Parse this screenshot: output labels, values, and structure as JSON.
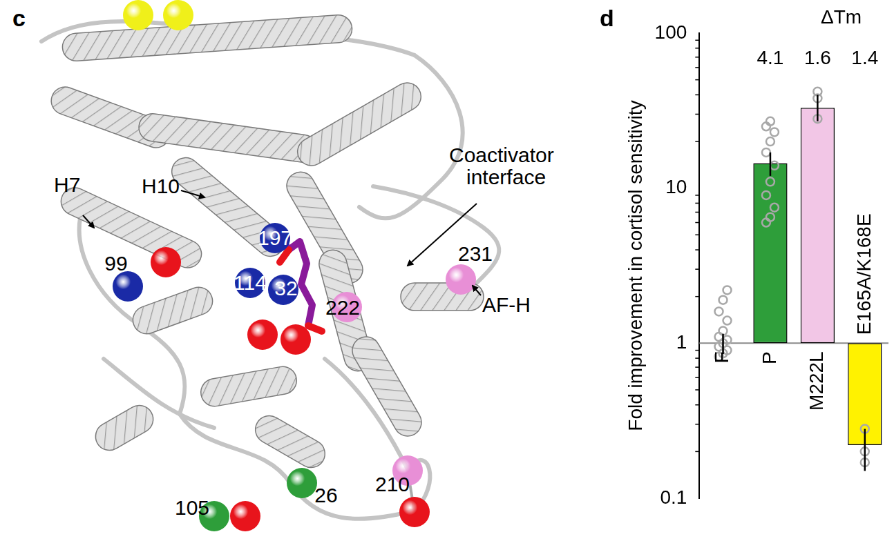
{
  "chart_data": {
    "type": "bar",
    "title": "d",
    "y_label": "Fold improvement in cortisol sensitivity",
    "categories": [
      "F",
      "P",
      "M222L",
      "E165A/K168E"
    ],
    "values": [
      1.0,
      14.5,
      33,
      0.22
    ],
    "baseline": 1,
    "error_low": [
      0.85,
      12,
      27,
      0.15
    ],
    "error_high": [
      1.15,
      17,
      40,
      0.28
    ],
    "points": [
      [
        0.82,
        0.86,
        0.9,
        0.95,
        1.0,
        1.05,
        1.1,
        1.2,
        1.4,
        1.6,
        1.9,
        2.2
      ],
      [
        6,
        6.5,
        7.5,
        9,
        11,
        14,
        17,
        20,
        23,
        25,
        27
      ],
      [
        28,
        38,
        42
      ],
      [
        0.17,
        0.2,
        0.28
      ]
    ],
    "colors": [
      "#9a9a9a",
      "#2e9e3a",
      "#f2c6e6",
      "#fff200"
    ],
    "delta_tm": {
      "label": "ΔTm",
      "values": [
        null,
        4.1,
        1.6,
        1.4
      ]
    },
    "log": "y",
    "grid": false,
    "ylim": [
      0.1,
      100
    ],
    "yticks": [
      0.1,
      1,
      10,
      100
    ]
  },
  "structure_panel": {
    "panel_label": "c",
    "helix_labels": [
      "H7",
      "H10"
    ],
    "annotations": [
      {
        "lines": [
          "Coactivator",
          "interface"
        ]
      },
      {
        "lines": [
          "AF-H"
        ]
      }
    ],
    "residues": [
      {
        "label": null,
        "color": "#f0f01a"
      },
      {
        "label": null,
        "color": "#f0f01a"
      },
      {
        "label": "197",
        "color": "#1a2aa6"
      },
      {
        "label": "114",
        "color": "#1a2aa6"
      },
      {
        "label": "32",
        "color": "#1a2aa6"
      },
      {
        "label": "99",
        "color": "#1a2aa6"
      },
      {
        "label": null,
        "color": "#e8141c"
      },
      {
        "label": null,
        "color": "#e8141c"
      },
      {
        "label": null,
        "color": "#e8141c"
      },
      {
        "label": null,
        "color": "#e8141c"
      },
      {
        "label": null,
        "color": "#e8141c"
      },
      {
        "label": "105",
        "color": "#2e9e3a"
      },
      {
        "label": "26",
        "color": "#2e9e3a"
      },
      {
        "label": "222",
        "color": "#e88fd6"
      },
      {
        "label": "231",
        "color": "#e88fd6"
      },
      {
        "label": "210",
        "color": "#e88fd6"
      }
    ]
  }
}
